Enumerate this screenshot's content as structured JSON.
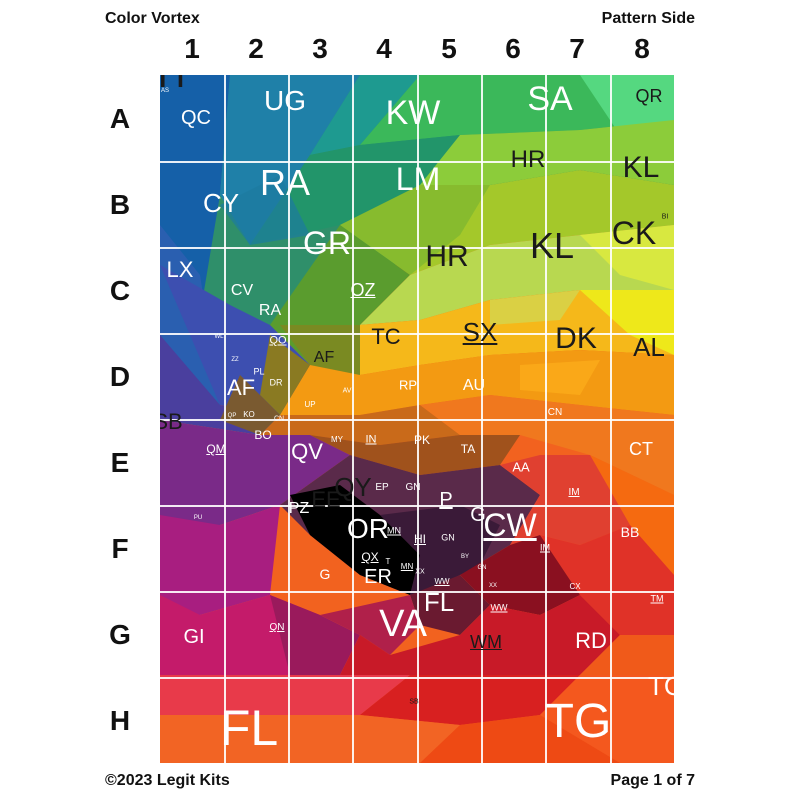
{
  "header": {
    "title": "Color Vortex",
    "side": "Pattern Side"
  },
  "footer": {
    "copyright": "©2023 Legit Kits",
    "page": "Page 1 of 7"
  },
  "columns": [
    "1",
    "2",
    "3",
    "4",
    "5",
    "6",
    "7",
    "8"
  ],
  "rows": [
    "A",
    "B",
    "C",
    "D",
    "E",
    "F",
    "G",
    "H"
  ],
  "labels": [
    {
      "t": "AS",
      "c": "w",
      "s": 6,
      "u": false
    },
    {
      "t": "QC",
      "c": "w",
      "s": 20,
      "u": false
    },
    {
      "t": "UG",
      "c": "w",
      "s": 28,
      "u": false
    },
    {
      "t": "KW",
      "c": "w",
      "s": 34,
      "u": false
    },
    {
      "t": "SA",
      "c": "w",
      "s": 34,
      "u": false
    },
    {
      "t": "QR",
      "c": "k",
      "s": 18,
      "u": false
    },
    {
      "t": "HR",
      "c": "k",
      "s": 24,
      "u": false
    },
    {
      "t": "KL",
      "c": "k",
      "s": 30,
      "u": false
    },
    {
      "t": "CY",
      "c": "w",
      "s": 26,
      "u": false
    },
    {
      "t": "RA",
      "c": "w",
      "s": 36,
      "u": false
    },
    {
      "t": "LM",
      "c": "w",
      "s": 32,
      "u": false
    },
    {
      "t": "BI",
      "c": "k",
      "s": 7,
      "u": false
    },
    {
      "t": "CK",
      "c": "k",
      "s": 32,
      "u": false
    },
    {
      "t": "GR",
      "c": "w",
      "s": 32,
      "u": false
    },
    {
      "t": "HR",
      "c": "k",
      "s": 30,
      "u": false
    },
    {
      "t": "KL",
      "c": "k",
      "s": 36,
      "u": false
    },
    {
      "t": "LX",
      "c": "w",
      "s": 22,
      "u": false
    },
    {
      "t": "CV",
      "c": "w",
      "s": 16,
      "u": false
    },
    {
      "t": "OZ",
      "c": "w",
      "s": 18,
      "u": true
    },
    {
      "t": "RA",
      "c": "w",
      "s": 16,
      "u": false
    },
    {
      "t": "WL",
      "c": "w",
      "s": 6,
      "u": false
    },
    {
      "t": "QO",
      "c": "w",
      "s": 11,
      "u": true
    },
    {
      "t": "TC",
      "c": "k",
      "s": 22,
      "u": false
    },
    {
      "t": "SX",
      "c": "k",
      "s": 26,
      "u": true
    },
    {
      "t": "DK",
      "c": "k",
      "s": 30,
      "u": false
    },
    {
      "t": "AL",
      "c": "k",
      "s": 26,
      "u": false
    },
    {
      "t": "ZZ",
      "c": "w",
      "s": 6,
      "u": false
    },
    {
      "t": "AF",
      "c": "k",
      "s": 16,
      "u": false
    },
    {
      "t": "PL",
      "c": "w",
      "s": 9,
      "u": false
    },
    {
      "t": "DR",
      "c": "w",
      "s": 9,
      "u": false
    },
    {
      "t": "AV",
      "c": "w",
      "s": 7,
      "u": false
    },
    {
      "t": "RP",
      "c": "w",
      "s": 13,
      "u": false
    },
    {
      "t": "AU",
      "c": "w",
      "s": 16,
      "u": false
    },
    {
      "t": "AF",
      "c": "w",
      "s": 22,
      "u": false
    },
    {
      "t": "UP",
      "c": "w",
      "s": 8,
      "u": false
    },
    {
      "t": "CN",
      "c": "w",
      "s": 10,
      "u": false
    },
    {
      "t": "SB",
      "c": "k",
      "s": 22,
      "u": false
    },
    {
      "t": "QP",
      "c": "w",
      "s": 6,
      "u": false
    },
    {
      "t": "KO",
      "c": "w",
      "s": 8,
      "u": false
    },
    {
      "t": "CN",
      "c": "w",
      "s": 7,
      "u": false
    },
    {
      "t": "BO",
      "c": "w",
      "s": 12,
      "u": false
    },
    {
      "t": "MY",
      "c": "w",
      "s": 8,
      "u": false
    },
    {
      "t": "IN",
      "c": "w",
      "s": 11,
      "u": true
    },
    {
      "t": "PK",
      "c": "w",
      "s": 12,
      "u": false
    },
    {
      "t": "TA",
      "c": "w",
      "s": 12,
      "u": false
    },
    {
      "t": "QM",
      "c": "w",
      "s": 12,
      "u": true
    },
    {
      "t": "QV",
      "c": "w",
      "s": 22,
      "u": false
    },
    {
      "t": "AA",
      "c": "w",
      "s": 13,
      "u": false
    },
    {
      "t": "CT",
      "c": "w",
      "s": 18,
      "u": false
    },
    {
      "t": "QY",
      "c": "k",
      "s": 26,
      "u": false
    },
    {
      "t": "EP",
      "c": "w",
      "s": 10,
      "u": false
    },
    {
      "t": "GN",
      "c": "w",
      "s": 10,
      "u": false
    },
    {
      "t": "IM",
      "c": "w",
      "s": 10,
      "u": true
    },
    {
      "t": "EE",
      "c": "k",
      "s": 22,
      "u": false
    },
    {
      "t": "P",
      "c": "w",
      "s": 20,
      "u": true
    },
    {
      "t": "G",
      "c": "w",
      "s": 20,
      "u": false
    },
    {
      "t": "PZ",
      "c": "w",
      "s": 16,
      "u": false
    },
    {
      "t": "PU",
      "c": "w",
      "s": 6,
      "u": false
    },
    {
      "t": "CW",
      "c": "w",
      "s": 32,
      "u": true
    },
    {
      "t": "BB",
      "c": "w",
      "s": 14,
      "u": false
    },
    {
      "t": "OR",
      "c": "w",
      "s": 28,
      "u": false
    },
    {
      "t": "MN",
      "c": "w",
      "s": 9,
      "u": true
    },
    {
      "t": "HI",
      "c": "w",
      "s": 12,
      "u": true
    },
    {
      "t": "GN",
      "c": "w",
      "s": 9,
      "u": false
    },
    {
      "t": "IM",
      "c": "w",
      "s": 9,
      "u": true
    },
    {
      "t": "QX",
      "c": "w",
      "s": 12,
      "u": true
    },
    {
      "t": "T",
      "c": "w",
      "s": 8,
      "u": false
    },
    {
      "t": "MN",
      "c": "w",
      "s": 8,
      "u": true
    },
    {
      "t": "BY",
      "c": "w",
      "s": 6,
      "u": false
    },
    {
      "t": "G",
      "c": "w",
      "s": 14,
      "u": false
    },
    {
      "t": "ER",
      "c": "w",
      "s": 20,
      "u": false
    },
    {
      "t": "XX",
      "c": "w",
      "s": 7,
      "u": false
    },
    {
      "t": "GN",
      "c": "w",
      "s": 6,
      "u": false
    },
    {
      "t": "WW",
      "c": "w",
      "s": 8,
      "u": true
    },
    {
      "t": "XX",
      "c": "w",
      "s": 6,
      "u": false
    },
    {
      "t": "CX",
      "c": "w",
      "s": 8,
      "u": false
    },
    {
      "t": "FL",
      "c": "w",
      "s": 26,
      "u": false
    },
    {
      "t": "WW",
      "c": "w",
      "s": 9,
      "u": true
    },
    {
      "t": "TM",
      "c": "w",
      "s": 9,
      "u": true
    },
    {
      "t": "QN",
      "c": "w",
      "s": 10,
      "u": true
    },
    {
      "t": "VA",
      "c": "w",
      "s": 38,
      "u": false
    },
    {
      "t": "GI",
      "c": "w",
      "s": 20,
      "u": false
    },
    {
      "t": "WM",
      "c": "k",
      "s": 18,
      "u": true
    },
    {
      "t": "RD",
      "c": "w",
      "s": 22,
      "u": false
    },
    {
      "t": "TG",
      "c": "w",
      "s": 26,
      "u": false
    },
    {
      "t": "SB",
      "c": "k",
      "s": 7,
      "u": false
    },
    {
      "t": "FL",
      "c": "w",
      "s": 50,
      "u": false
    },
    {
      "t": "TG",
      "c": "w",
      "s": 48,
      "u": false
    },
    {
      "t": "TH",
      "c": "k",
      "s": 38,
      "u": false
    }
  ]
}
